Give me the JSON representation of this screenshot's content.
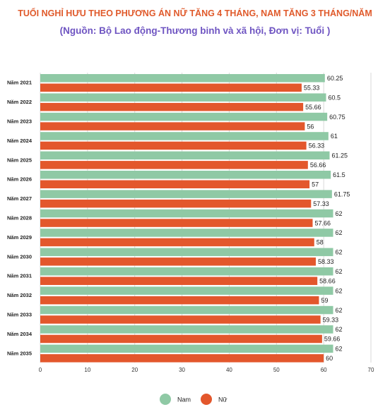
{
  "title": "TUỔI NGHỈ HƯU THEO PHƯƠNG ÁN NỮ TĂNG 4 THÁNG, NAM TĂNG 3 THÁNG/NĂM",
  "subtitle": "(Nguồn: Bộ Lao động-Thương binh và xã hội, Đơn vị: Tuổi )",
  "colors": {
    "nam": "#8fc9a5",
    "nu": "#e3572c"
  },
  "chart_data": {
    "type": "bar",
    "orientation": "horizontal",
    "categories": [
      "Năm 2021",
      "Năm 2022",
      "Năm 2023",
      "Năm 2024",
      "Năm 2025",
      "Năm 2026",
      "Năm 2027",
      "Năm 2028",
      "Năm 2029",
      "Năm 2030",
      "Năm 2031",
      "Năm 2032",
      "Năm 2033",
      "Năm 2034",
      "Năm 2035"
    ],
    "series": [
      {
        "name": "Nam",
        "values": [
          60.25,
          60.5,
          60.75,
          61,
          61.25,
          61.5,
          61.75,
          62,
          62,
          62,
          62,
          62,
          62,
          62,
          62
        ]
      },
      {
        "name": "Nữ",
        "values": [
          55.33,
          55.66,
          56,
          56.33,
          56.66,
          57,
          57.33,
          57.66,
          58,
          58.33,
          58.66,
          59,
          59.33,
          59.66,
          60
        ]
      }
    ],
    "value_labels": {
      "Nam": [
        "60.25",
        "60.5",
        "60.75",
        "61",
        "61.25",
        "61.5",
        "61.75",
        "62",
        "62",
        "62",
        "62",
        "62",
        "62",
        "62",
        "62"
      ],
      "Nữ": [
        "55.33",
        "55.66",
        "56",
        "56.33",
        "56.66",
        "57",
        "57.33",
        "57.66",
        "58",
        "58.33",
        "58.66",
        "59",
        "59.33",
        "59.66",
        "60"
      ]
    },
    "xlim": [
      0,
      70
    ],
    "xticks": [
      "0",
      "10",
      "20",
      "30",
      "40",
      "50",
      "60",
      "70"
    ],
    "grid": true,
    "legend": "bottom"
  }
}
